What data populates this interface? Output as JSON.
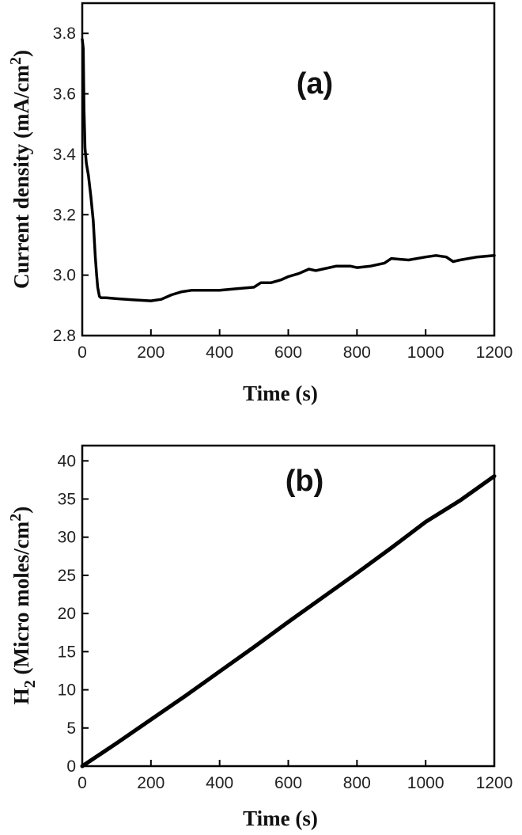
{
  "chart_data": [
    {
      "type": "line",
      "panel_label": "(a)",
      "xlabel": "Time (s)",
      "ylabel_main": "Current density (mA/cm",
      "ylabel_sup": "2",
      "ylabel_tail": ")",
      "xlim": [
        0,
        1200
      ],
      "ylim": [
        2.8,
        3.9
      ],
      "xticks": [
        0,
        200,
        400,
        600,
        800,
        1000,
        1200
      ],
      "yticks": [
        2.8,
        3.0,
        3.2,
        3.4,
        3.6,
        3.8
      ],
      "ytick_labels": [
        "2.8",
        "3.0",
        "3.2",
        "3.4",
        "3.6",
        "3.8"
      ],
      "grid": false,
      "series": [
        {
          "color": "#000000",
          "x": [
            0,
            3,
            5,
            8,
            12,
            18,
            25,
            32,
            38,
            42,
            45,
            50,
            55,
            60,
            70,
            100,
            150,
            200,
            230,
            260,
            290,
            320,
            400,
            450,
            500,
            520,
            550,
            580,
            600,
            630,
            660,
            680,
            700,
            740,
            780,
            800,
            840,
            880,
            900,
            950,
            1000,
            1030,
            1060,
            1080,
            1100,
            1150,
            1200
          ],
          "y": [
            3.78,
            3.75,
            3.55,
            3.42,
            3.37,
            3.33,
            3.26,
            3.18,
            3.06,
            3.0,
            2.96,
            2.93,
            2.925,
            2.925,
            2.925,
            2.922,
            2.918,
            2.915,
            2.92,
            2.935,
            2.945,
            2.95,
            2.95,
            2.955,
            2.96,
            2.975,
            2.975,
            2.985,
            2.995,
            3.005,
            3.02,
            3.015,
            3.02,
            3.03,
            3.03,
            3.025,
            3.03,
            3.04,
            3.055,
            3.05,
            3.06,
            3.065,
            3.06,
            3.045,
            3.05,
            3.06,
            3.065
          ]
        }
      ]
    },
    {
      "type": "line",
      "panel_label": "(b)",
      "xlabel": "Time (s)",
      "ylabel_main": "H",
      "ylabel_sub": "2",
      "ylabel_rest": " (Micro moles/cm",
      "ylabel_sup": "2",
      "ylabel_tail": ")",
      "xlim": [
        0,
        1200
      ],
      "ylim": [
        0,
        42
      ],
      "xticks": [
        0,
        200,
        400,
        600,
        800,
        1000,
        1200
      ],
      "yticks": [
        0,
        5,
        10,
        15,
        20,
        25,
        30,
        35,
        40
      ],
      "ytick_labels": [
        "0",
        "5",
        "10",
        "15",
        "20",
        "25",
        "30",
        "35",
        "40"
      ],
      "grid": false,
      "series": [
        {
          "color": "#000000",
          "x": [
            0,
            100,
            200,
            300,
            400,
            500,
            600,
            700,
            800,
            900,
            1000,
            1100,
            1200
          ],
          "y": [
            0,
            3.0,
            6.1,
            9.2,
            12.4,
            15.6,
            18.9,
            22.1,
            25.3,
            28.6,
            32.0,
            34.8,
            38.0
          ]
        }
      ]
    }
  ]
}
